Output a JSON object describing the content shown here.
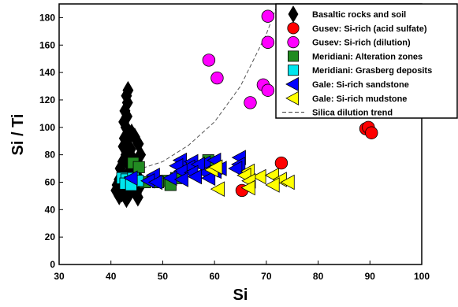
{
  "chart_data": {
    "type": "scatter",
    "xlabel": "Si",
    "ylabel": "Si / Ti",
    "xlim": [
      30,
      100
    ],
    "ylim": [
      0,
      190
    ],
    "xticks": [
      "30",
      "40",
      "50",
      "60",
      "70",
      "80",
      "90",
      "100"
    ],
    "yticks": [
      "0",
      "20",
      "40",
      "60",
      "80",
      "100",
      "120",
      "140",
      "160",
      "180"
    ],
    "grid": false,
    "legend_position": "top-right",
    "series": [
      {
        "name": "Basaltic rocks and soil",
        "marker": "diamond",
        "color": "#000000",
        "points": [
          [
            43.3,
            127
          ],
          [
            43.0,
            123
          ],
          [
            43.2,
            118
          ],
          [
            42.7,
            112
          ],
          [
            43.1,
            108
          ],
          [
            42.5,
            104
          ],
          [
            42.9,
            100
          ],
          [
            43.4,
            96
          ],
          [
            42.6,
            92
          ],
          [
            44.0,
            96
          ],
          [
            43.2,
            88
          ],
          [
            44.6,
            93
          ],
          [
            42.4,
            86
          ],
          [
            43.8,
            84
          ],
          [
            45.3,
            88
          ],
          [
            42.9,
            80
          ],
          [
            44.1,
            78
          ],
          [
            45.7,
            80
          ],
          [
            42.3,
            75
          ],
          [
            43.6,
            72
          ],
          [
            44.8,
            73
          ],
          [
            41.8,
            70
          ],
          [
            43.3,
            66
          ],
          [
            44.7,
            67
          ],
          [
            42.5,
            64
          ],
          [
            41.6,
            62
          ],
          [
            43.9,
            61
          ],
          [
            45.4,
            63
          ],
          [
            41.2,
            58
          ],
          [
            42.8,
            57
          ],
          [
            44.3,
            56
          ],
          [
            45.6,
            57
          ],
          [
            41.0,
            54
          ],
          [
            42.1,
            52
          ],
          [
            43.5,
            51
          ],
          [
            44.9,
            52
          ],
          [
            41.6,
            50
          ],
          [
            43.0,
            48
          ],
          [
            45.2,
            49
          ]
        ]
      },
      {
        "name": "Gusev: Si-rich (acid sulfate)",
        "marker": "circle",
        "color": "#ff0000",
        "points": [
          [
            65.3,
            54
          ],
          [
            72.9,
            74
          ],
          [
            89.2,
            99
          ],
          [
            89.7,
            100
          ],
          [
            90.3,
            96
          ]
        ]
      },
      {
        "name": "Gusev: Si-rich (dilution)",
        "marker": "circle",
        "color": "#ff00ff",
        "points": [
          [
            70.3,
            181
          ],
          [
            70.3,
            162
          ],
          [
            58.9,
            149
          ],
          [
            60.5,
            136
          ],
          [
            69.4,
            131
          ],
          [
            70.3,
            127
          ],
          [
            66.9,
            118
          ]
        ]
      },
      {
        "name": "Meridiani: Alteration zones",
        "marker": "square",
        "color": "#228b22",
        "points": [
          [
            44.3,
            74
          ],
          [
            45.4,
            71
          ],
          [
            58.8,
            76
          ],
          [
            52.6,
            63
          ],
          [
            50.6,
            61
          ],
          [
            46.6,
            60
          ],
          [
            49.1,
            60
          ],
          [
            51.5,
            58
          ]
        ]
      },
      {
        "name": "Meridiani: Grasberg deposits",
        "marker": "square",
        "color": "#00e5ee",
        "points": [
          [
            42.2,
            63
          ],
          [
            43.0,
            62
          ],
          [
            44.3,
            63
          ],
          [
            43.7,
            60
          ],
          [
            45.2,
            61
          ],
          [
            42.8,
            59
          ],
          [
            43.9,
            58
          ]
        ]
      },
      {
        "name": "Gale: Si-rich sandstone",
        "marker": "triangle-left",
        "color": "#0000ff",
        "points": [
          [
            53.5,
            76
          ],
          [
            55.7,
            75
          ],
          [
            58.1,
            74
          ],
          [
            60.1,
            76
          ],
          [
            64.9,
            78
          ],
          [
            52.8,
            72
          ],
          [
            55.1,
            71
          ],
          [
            57.0,
            73
          ],
          [
            61.2,
            70
          ],
          [
            64.8,
            73
          ],
          [
            53.6,
            68
          ],
          [
            55.7,
            67
          ],
          [
            58.2,
            67
          ],
          [
            60.2,
            68
          ],
          [
            64.2,
            70
          ],
          [
            48.3,
            65
          ],
          [
            51.6,
            63
          ],
          [
            53.8,
            62
          ],
          [
            56.4,
            64
          ],
          [
            59.0,
            63
          ],
          [
            44.0,
            63
          ],
          [
            47.3,
            61
          ],
          [
            48.8,
            60
          ]
        ]
      },
      {
        "name": "Gale: Si-rich mudstone",
        "marker": "triangle-left",
        "color": "#ffff00",
        "points": [
          [
            59.6,
            69
          ],
          [
            60.4,
            71
          ],
          [
            66.6,
            68
          ],
          [
            65.9,
            65
          ],
          [
            68.8,
            64
          ],
          [
            66.8,
            61
          ],
          [
            71.3,
            65
          ],
          [
            72.8,
            62
          ],
          [
            74.3,
            60
          ],
          [
            71.4,
            58
          ],
          [
            60.8,
            55
          ],
          [
            66.7,
            56
          ]
        ]
      }
    ],
    "dilution_trend": {
      "name": "Silica dilution trend",
      "style": "dashed",
      "points": [
        [
          45,
          69
        ],
        [
          50,
          75
        ],
        [
          55,
          87
        ],
        [
          60,
          104
        ],
        [
          65,
          130
        ],
        [
          70,
          168
        ],
        [
          72,
          188
        ]
      ]
    }
  }
}
